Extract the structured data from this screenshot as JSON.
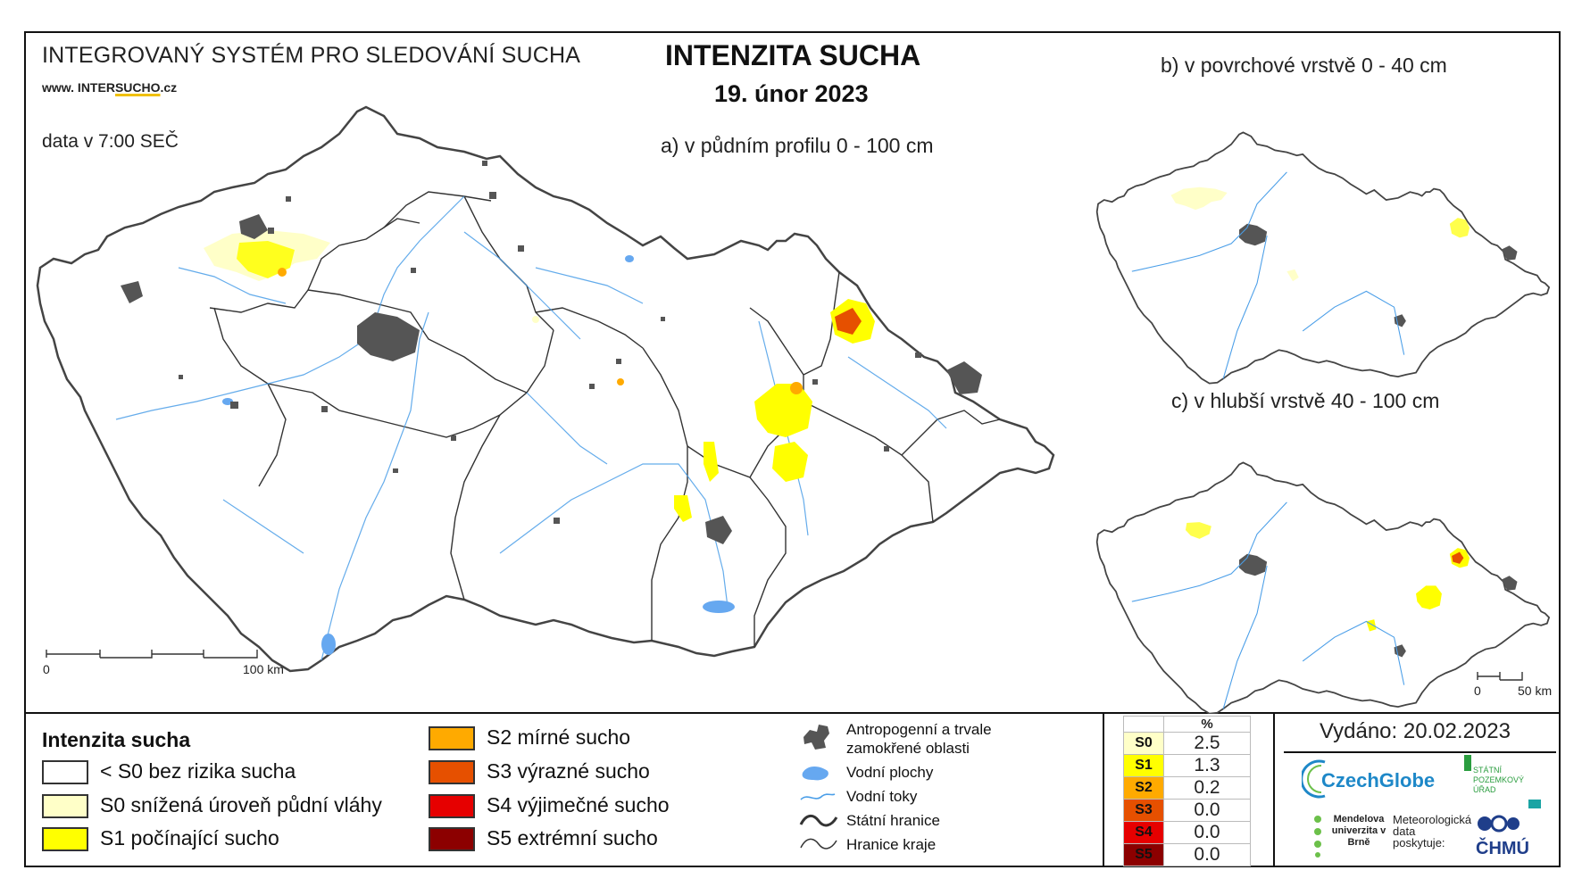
{
  "header": {
    "system_title": "INTEGROVANÝ SYSTÉM PRO SLEDOVÁNÍ SUCHA",
    "website_prefix": "www. INTER",
    "website_highlight": "SUCHO",
    "website_suffix": ".cz",
    "data_time": "data v 7:00 SEČ",
    "main_title": "INTENZITA SUCHA",
    "main_date": "19. únor 2023"
  },
  "maps": {
    "a_label": "a) v půdním profilu 0 - 100 cm",
    "b_label": "b) v povrchové vrstvě 0 - 40 cm",
    "c_label": "c) v hlubší vrstvě 40 - 100 cm",
    "scale_main": {
      "start": "0",
      "end": "100 km"
    },
    "scale_small": {
      "start": "0",
      "end": "50 km"
    }
  },
  "legend": {
    "title": "Intenzita sucha",
    "classes": [
      {
        "label": "< S0 bez rizika sucha",
        "color": "#ffffff"
      },
      {
        "label": "S0 snížená úroveň půdní vláhy",
        "color": "#ffffc8"
      },
      {
        "label": "S1 počínající sucho",
        "color": "#ffff00"
      },
      {
        "label": "S2 mírné sucho",
        "color": "#ffaa00"
      },
      {
        "label": "S3 výrazné sucho",
        "color": "#e65000"
      },
      {
        "label": "S4 výjimečné sucho",
        "color": "#e60000"
      },
      {
        "label": "S5 extrémní sucho",
        "color": "#8c0000"
      }
    ],
    "symbols": [
      {
        "label": "Antropogenní a trvale",
        "label2": "zamokřené oblasti",
        "icon": "urban-area-icon"
      },
      {
        "label": "Vodní plochy",
        "icon": "water-body-icon"
      },
      {
        "label": "Vodní toky",
        "icon": "river-icon"
      },
      {
        "label": "Státní hranice",
        "icon": "state-border-icon"
      },
      {
        "label": "Hranice kraje",
        "icon": "region-border-icon"
      }
    ]
  },
  "percent_table": {
    "header": "%",
    "rows": [
      {
        "code": "S0",
        "value": "2.5",
        "color": "#ffffc8"
      },
      {
        "code": "S1",
        "value": "1.3",
        "color": "#ffff00"
      },
      {
        "code": "S2",
        "value": "0.2",
        "color": "#ffaa00"
      },
      {
        "code": "S3",
        "value": "0.0",
        "color": "#e65000"
      },
      {
        "code": "S4",
        "value": "0.0",
        "color": "#e60000"
      },
      {
        "code": "S5",
        "value": "0.0",
        "color": "#8c0000"
      }
    ]
  },
  "footer": {
    "issued": "Vydáno: 20.02.2023",
    "logo_czechglobe": "CzechGlobe",
    "logo_spu": "STÁTNÍ POZEMKOVÝ ÚŘAD",
    "logo_mendelu": "Mendelova univerzita v Brně",
    "logo_meteo": "Meteorologická data poskytuje:",
    "logo_chmu": "ČHMÚ"
  }
}
